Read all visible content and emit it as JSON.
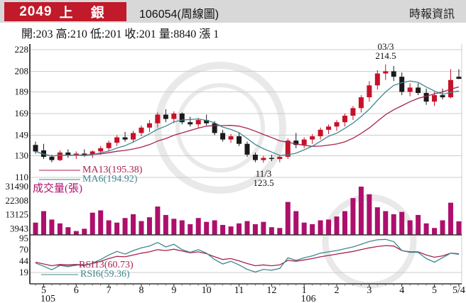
{
  "header": {
    "stock_id": "2049",
    "stock_name": "上 銀",
    "chart_code": "106054(周線圖)",
    "source": "時報資訊"
  },
  "quote": {
    "open": 203,
    "high": 210,
    "low": 201,
    "close": 201,
    "volume": 8840,
    "change": "漲 1",
    "text": "開:203 高:210 低:201 收:201 量:8840 漲 1"
  },
  "chart_data": {
    "type": "candlestick",
    "title": "2049 上銀 週線圖 (weekly candlestick with volume and RSI)",
    "price_axis_ticks": [
      228,
      208,
      189,
      169,
      149,
      130,
      110
    ],
    "volume_axis_ticks": [
      31490,
      22308,
      13125,
      3943
    ],
    "rsi_axis_ticks": [
      95,
      70,
      44,
      19
    ],
    "x_axis": {
      "labels": [
        "5",
        "6",
        "7",
        "8",
        "9",
        "10",
        "11",
        "12",
        "1",
        "2",
        "3",
        "4",
        "5",
        "5/4"
      ],
      "label_weeks": [
        1,
        5,
        9,
        13,
        17,
        21,
        25,
        29,
        33,
        37,
        41,
        45,
        49,
        52
      ],
      "year_labels": [
        {
          "text": "105",
          "week": 1
        },
        {
          "text": "106",
          "week": 33
        }
      ]
    },
    "candles_ohlc": [
      [
        140,
        143,
        132,
        134
      ],
      [
        135,
        141,
        127,
        129
      ],
      [
        129,
        131,
        124,
        126
      ],
      [
        126,
        135,
        125,
        133
      ],
      [
        133,
        136,
        128,
        130
      ],
      [
        130,
        134,
        127,
        132
      ],
      [
        132,
        136,
        129,
        131
      ],
      [
        131,
        135,
        128,
        134
      ],
      [
        134,
        139,
        131,
        137
      ],
      [
        137,
        144,
        134,
        142
      ],
      [
        142,
        149,
        139,
        147
      ],
      [
        147,
        152,
        143,
        145
      ],
      [
        145,
        153,
        142,
        151
      ],
      [
        151,
        158,
        148,
        156
      ],
      [
        156,
        163,
        152,
        160
      ],
      [
        160,
        170,
        156,
        168
      ],
      [
        168,
        173,
        161,
        164
      ],
      [
        164,
        171,
        160,
        169
      ],
      [
        169,
        170,
        159,
        161
      ],
      [
        161,
        166,
        157,
        159
      ],
      [
        159,
        165,
        156,
        163
      ],
      [
        163,
        168,
        158,
        160
      ],
      [
        160,
        162,
        149,
        151
      ],
      [
        151,
        154,
        143,
        145
      ],
      [
        145,
        150,
        142,
        148
      ],
      [
        148,
        151,
        139,
        141
      ],
      [
        141,
        143,
        129,
        131
      ],
      [
        131,
        133,
        124,
        126
      ],
      [
        126,
        130,
        123.5,
        128
      ],
      [
        128,
        131,
        125,
        127
      ],
      [
        127,
        130,
        124,
        129
      ],
      [
        129,
        146,
        127,
        144
      ],
      [
        144,
        151,
        137,
        140
      ],
      [
        140,
        147,
        137,
        145
      ],
      [
        145,
        150,
        141,
        148
      ],
      [
        148,
        156,
        145,
        154
      ],
      [
        154,
        159,
        150,
        157
      ],
      [
        157,
        163,
        153,
        161
      ],
      [
        161,
        169,
        157,
        167
      ],
      [
        167,
        176,
        163,
        174
      ],
      [
        174,
        186,
        170,
        184
      ],
      [
        184,
        199,
        180,
        195
      ],
      [
        195,
        209,
        191,
        206
      ],
      [
        206,
        214.5,
        200,
        208
      ],
      [
        208,
        213,
        199,
        203
      ],
      [
        203,
        207,
        186,
        189
      ],
      [
        189,
        197,
        185,
        193
      ],
      [
        193,
        197,
        186,
        188
      ],
      [
        188,
        192,
        177,
        180
      ],
      [
        180,
        189,
        176,
        186
      ],
      [
        186,
        192,
        182,
        184
      ],
      [
        184,
        210,
        183,
        200
      ],
      [
        203,
        210,
        201,
        201
      ]
    ],
    "volumes": [
      8000,
      15500,
      10000,
      7500,
      5000,
      2500,
      4000,
      14500,
      16000,
      9500,
      8000,
      11000,
      13500,
      9000,
      11500,
      18500,
      13000,
      10500,
      9500,
      7000,
      11000,
      8500,
      9500,
      6500,
      5500,
      7500,
      9000,
      7000,
      8500,
      5000,
      4500,
      21500,
      15500,
      8000,
      7000,
      9500,
      10000,
      12000,
      15500,
      24000,
      31490,
      26500,
      18000,
      15500,
      13500,
      15000,
      9500,
      13000,
      7500,
      4500,
      9500,
      21000,
      8840
    ],
    "rsi6": [
      40,
      33,
      25,
      35,
      32,
      36,
      34,
      40,
      48,
      58,
      66,
      60,
      68,
      74,
      78,
      86,
      76,
      82,
      70,
      64,
      70,
      62,
      48,
      38,
      44,
      36,
      26,
      20,
      26,
      24,
      28,
      52,
      46,
      52,
      56,
      62,
      65,
      68,
      72,
      76,
      82,
      88,
      92,
      93,
      88,
      68,
      64,
      64,
      50,
      42,
      52,
      62,
      59.4
    ],
    "rsi13": [
      42,
      38,
      34,
      37,
      36,
      37,
      36,
      39,
      44,
      50,
      55,
      54,
      58,
      62,
      65,
      70,
      68,
      71,
      67,
      63,
      65,
      61,
      54,
      48,
      50,
      45,
      39,
      34,
      36,
      34,
      36,
      46,
      44,
      47,
      50,
      54,
      57,
      60,
      63,
      66,
      70,
      74,
      77,
      79,
      78,
      68,
      65,
      65,
      58,
      53,
      56,
      62,
      60.7
    ],
    "legends": {
      "ma13_label": "MA13(195.38)",
      "ma6_label": "MA6(194.92)",
      "volume_label": "成交量(張)",
      "rsi13_label": "RSI13(60.73)",
      "rsi6_label": "RSI6(59.36)"
    },
    "annotations": {
      "peak": {
        "line1": "03/3",
        "line2": "214.5",
        "week": 43
      },
      "trough": {
        "line1": "11/3",
        "line2": "123.5",
        "week": 28
      }
    },
    "colors": {
      "up": "#c51228",
      "down": "#1a1a1a",
      "ma6": "#3f8890",
      "ma13": "#a8234d",
      "volume": "#ad0f6c",
      "rsi6": "#3f8890",
      "rsi13": "#a8234d",
      "grid": "#cccccc",
      "axis": "#333333",
      "badge_red": "#c11a2b",
      "header_bg": "#d8d8d8",
      "watermark": "#e9e9e9"
    },
    "layout_hints": {
      "grid": true,
      "panels": [
        "price",
        "volume",
        "rsi"
      ],
      "price_range": [
        110,
        228
      ],
      "volume_max": 31490,
      "rsi_range": [
        19,
        95
      ]
    }
  }
}
